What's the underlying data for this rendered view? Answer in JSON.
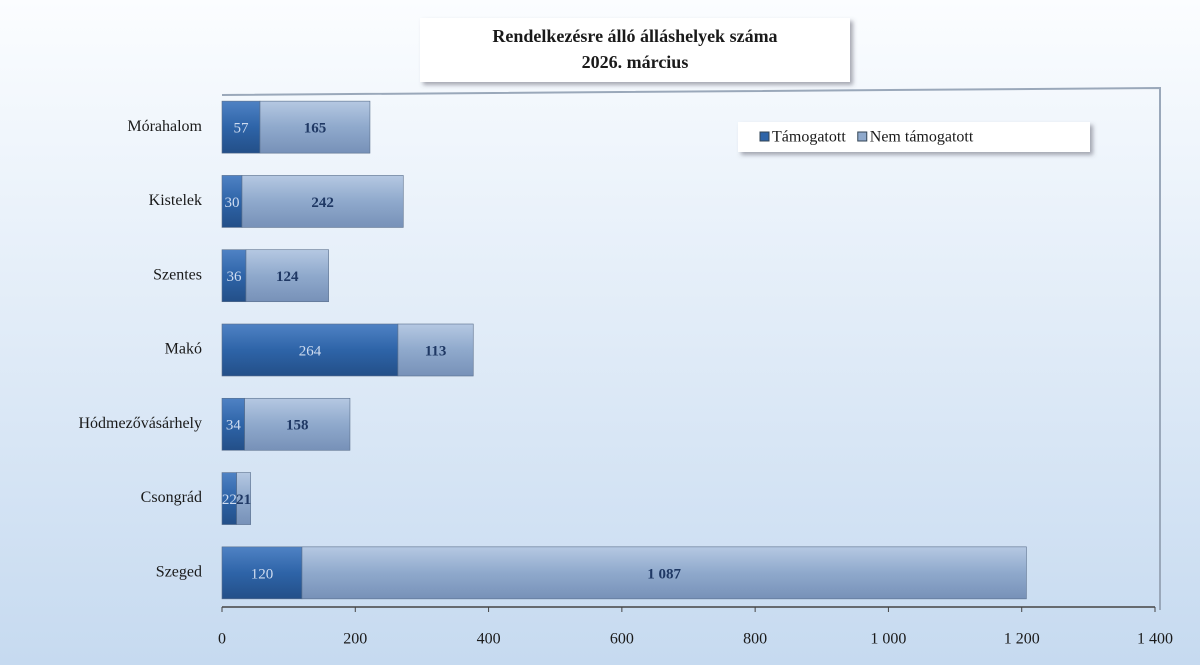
{
  "chart_data": {
    "type": "stacked-barh",
    "title": "Rendelkezésre álló álláshelyek száma",
    "subtitle": "2026. március",
    "categories": [
      "Mórahalom",
      "Kistelek",
      "Szentes",
      "Makó",
      "Hódmezővásárhely",
      "Csongrád",
      "Szeged"
    ],
    "series": [
      {
        "name": "Támogatott",
        "color": "#2e64a8",
        "values": [
          57,
          30,
          36,
          264,
          34,
          22,
          120
        ]
      },
      {
        "name": "Nem támogatott",
        "color": "#8fa9cc",
        "values": [
          165,
          242,
          124,
          113,
          158,
          21,
          1087
        ],
        "value_labels": [
          "165",
          "242",
          "124",
          "113",
          "158",
          "21",
          "1 087"
        ]
      }
    ],
    "xlim": [
      0,
      1400
    ],
    "xticks": [
      0,
      200,
      400,
      600,
      800,
      {
        "value": 1000,
        "label": "1 000"
      },
      {
        "value": 1200,
        "label": "1 200"
      },
      {
        "value": 1400,
        "label": "1 400"
      }
    ],
    "legend": "top-right"
  }
}
